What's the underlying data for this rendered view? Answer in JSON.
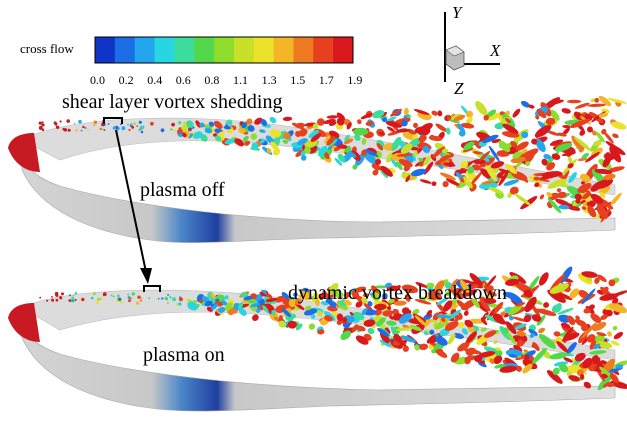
{
  "legend": {
    "title": "cross flow",
    "ticks": [
      "0.0",
      "0.2",
      "0.4",
      "0.6",
      "0.8",
      "1.1",
      "1.3",
      "1.5",
      "1.7",
      "1.9"
    ],
    "colors": [
      "#1034c8",
      "#1c6ee6",
      "#23a6ee",
      "#27d6e0",
      "#3bdc9c",
      "#52d84a",
      "#8edc2e",
      "#c8e02a",
      "#ece22a",
      "#f3b626",
      "#ee7a22",
      "#e6401e",
      "#d8181c"
    ]
  },
  "labels": {
    "shear": "shear layer  vortex shedding",
    "plasma_off": "plasma off",
    "plasma_on": "plasma on",
    "dynamic": "dynamic vortex breakdown"
  },
  "axes": {
    "y": "Y",
    "x": "X",
    "z": "Z"
  }
}
